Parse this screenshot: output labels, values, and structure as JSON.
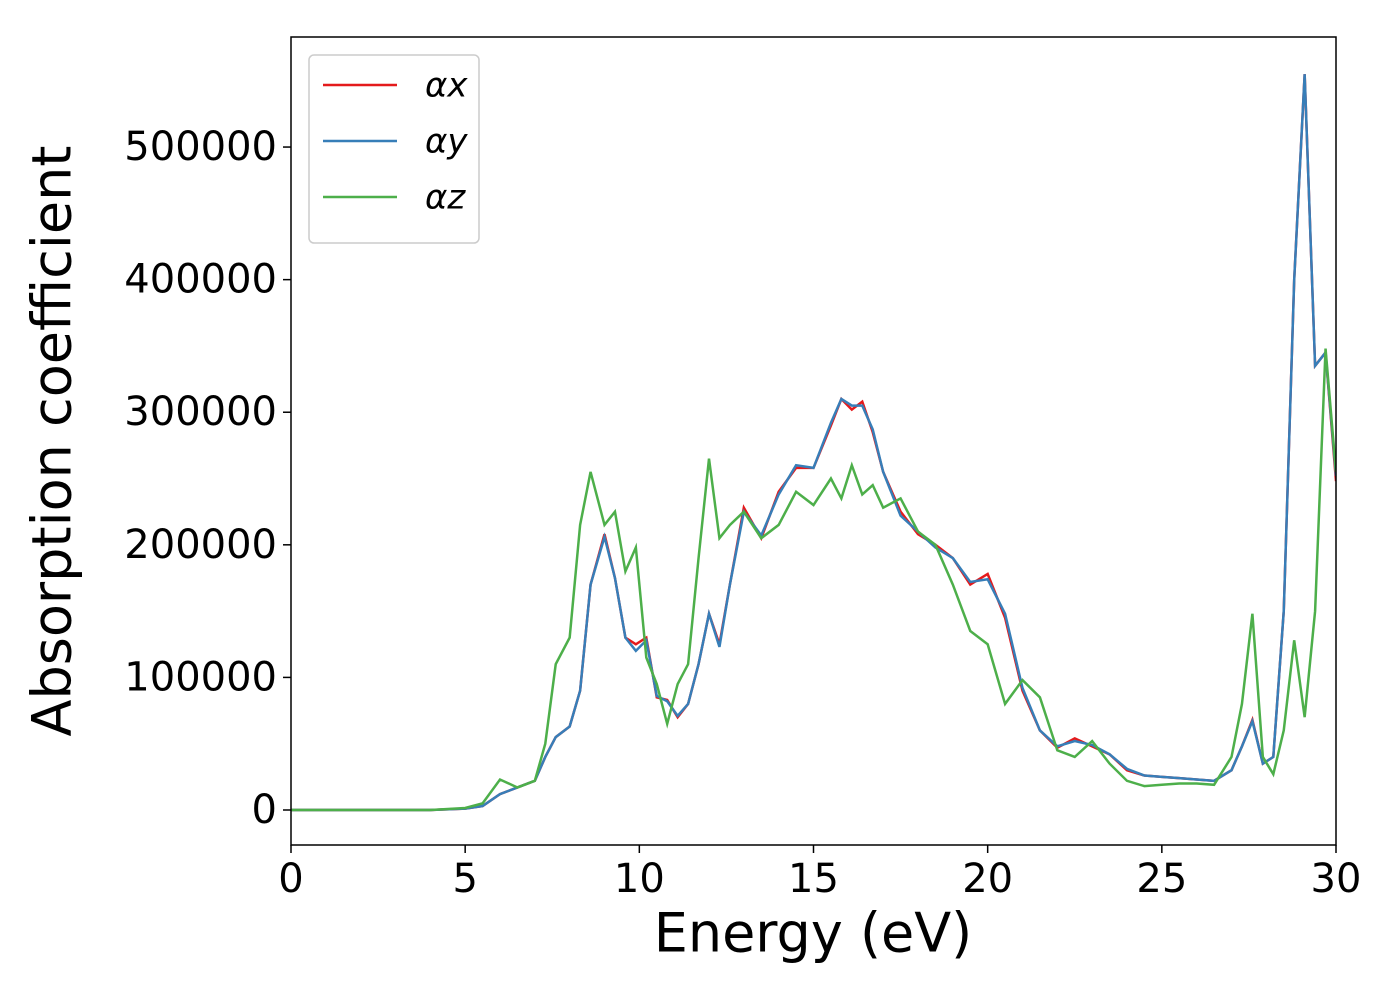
{
  "chart_data": {
    "type": "line",
    "xlabel": "Energy (eV)",
    "ylabel": "Absorption coefficient",
    "x": [
      0,
      2,
      4,
      5,
      5.5,
      6,
      6.5,
      7,
      7.3,
      7.6,
      8,
      8.3,
      8.6,
      9,
      9.3,
      9.6,
      9.9,
      10.2,
      10.5,
      10.8,
      11.1,
      11.4,
      11.7,
      12,
      12.3,
      12.6,
      13,
      13.5,
      14,
      14.5,
      15,
      15.5,
      15.8,
      16.1,
      16.4,
      16.7,
      17,
      17.5,
      18,
      18.5,
      19,
      19.5,
      20,
      20.5,
      21,
      21.5,
      22,
      22.5,
      23,
      23.5,
      24,
      24.5,
      25,
      25.5,
      26,
      26.5,
      27,
      27.3,
      27.6,
      27.9,
      28.2,
      28.5,
      28.8,
      29.1,
      29.4,
      29.7,
      30
    ],
    "series": [
      {
        "name": "αx",
        "color": "#e41a1c",
        "values": [
          0,
          0,
          0,
          1000,
          3000,
          12000,
          17000,
          22000,
          40000,
          55000,
          63000,
          90000,
          170000,
          208000,
          175000,
          130000,
          125000,
          130000,
          85000,
          83000,
          70000,
          80000,
          110000,
          148000,
          125000,
          170000,
          228000,
          205000,
          240000,
          258000,
          258000,
          290000,
          310000,
          302000,
          308000,
          285000,
          255000,
          225000,
          208000,
          200000,
          190000,
          170000,
          178000,
          145000,
          90000,
          60000,
          47000,
          54000,
          48000,
          42000,
          30000,
          26000,
          25000,
          24000,
          23000,
          22000,
          30000,
          48000,
          68000,
          35000,
          40000,
          150000,
          400000,
          555000,
          335000,
          345000,
          248000
        ]
      },
      {
        "name": "αy",
        "color": "#377eb8",
        "values": [
          0,
          0,
          0,
          1000,
          3000,
          12000,
          17000,
          22000,
          40000,
          55000,
          63000,
          90000,
          170000,
          206000,
          175000,
          130000,
          120000,
          128000,
          86000,
          82000,
          71000,
          80000,
          110000,
          148000,
          123000,
          170000,
          225000,
          207000,
          238000,
          260000,
          258000,
          292000,
          310000,
          305000,
          305000,
          287000,
          255000,
          222000,
          210000,
          198000,
          190000,
          172000,
          174000,
          148000,
          92000,
          60000,
          48000,
          52000,
          49000,
          42000,
          31000,
          26000,
          25000,
          24000,
          23000,
          22000,
          30000,
          48000,
          67000,
          35000,
          40000,
          150000,
          400000,
          555000,
          335000,
          345000,
          252000
        ]
      },
      {
        "name": "αz",
        "color": "#4daf4a",
        "values": [
          0,
          0,
          0,
          1500,
          5000,
          23000,
          17000,
          22000,
          50000,
          110000,
          130000,
          215000,
          255000,
          215000,
          225000,
          180000,
          198000,
          115000,
          95000,
          65000,
          95000,
          110000,
          190000,
          265000,
          205000,
          215000,
          225000,
          205000,
          215000,
          240000,
          230000,
          250000,
          235000,
          260000,
          238000,
          245000,
          228000,
          235000,
          210000,
          200000,
          170000,
          135000,
          125000,
          80000,
          98000,
          85000,
          45000,
          40000,
          52000,
          35000,
          22000,
          18000,
          19000,
          20000,
          20000,
          19000,
          40000,
          80000,
          148000,
          40000,
          27000,
          60000,
          128000,
          70000,
          150000,
          348000,
          255000
        ]
      }
    ],
    "xlim": [
      0,
      30
    ],
    "xticks": [
      0,
      5,
      10,
      15,
      20,
      25,
      30
    ],
    "ylim": [
      -26400,
      583000
    ],
    "yticks": [
      0,
      100000,
      200000,
      300000,
      400000,
      500000
    ],
    "legend": "upper left"
  }
}
